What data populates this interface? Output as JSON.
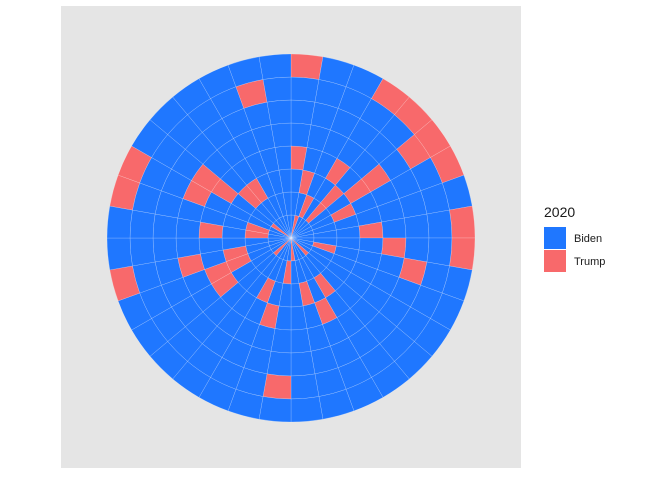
{
  "chart_data": {
    "type": "polar-tile",
    "title": "",
    "xlabel": "",
    "ylabel": "",
    "rings": 8,
    "sectors": 36,
    "fill_order": "sector 0 starts at 12 o'clock, proceeds clockwise; ring 0 is innermost",
    "legend": {
      "title": "2020",
      "position": "right",
      "entries": [
        {
          "label": "Biden",
          "color": "#1f77ff"
        },
        {
          "label": "Trump",
          "color": "#f8696b"
        }
      ]
    },
    "colors": {
      "panel": "#e5e5e5",
      "grid": "#ffffff"
    },
    "trump_cells": [
      [
        0,
        1
      ],
      [
        0,
        13
      ],
      [
        0,
        17
      ],
      [
        0,
        22
      ],
      [
        0,
        30
      ],
      [
        1,
        2
      ],
      [
        1,
        4
      ],
      [
        1,
        10
      ],
      [
        1,
        18
      ],
      [
        1,
        27
      ],
      [
        1,
        28
      ],
      [
        2,
        1
      ],
      [
        2,
        4
      ],
      [
        2,
        6
      ],
      [
        2,
        14
      ],
      [
        2,
        16
      ],
      [
        2,
        20
      ],
      [
        2,
        24
      ],
      [
        2,
        25
      ],
      [
        2,
        31
      ],
      [
        2,
        32
      ],
      [
        3,
        0
      ],
      [
        3,
        3
      ],
      [
        3,
        5
      ],
      [
        3,
        8
      ],
      [
        3,
        15
      ],
      [
        3,
        19
      ],
      [
        3,
        23
      ],
      [
        3,
        24
      ],
      [
        3,
        27
      ],
      [
        3,
        30
      ],
      [
        4,
        5
      ],
      [
        4,
        9
      ],
      [
        4,
        25
      ],
      [
        4,
        29
      ],
      [
        4,
        30
      ],
      [
        5,
        10
      ],
      [
        6,
        5
      ],
      [
        6,
        18
      ],
      [
        6,
        34
      ],
      [
        7,
        0
      ],
      [
        7,
        3
      ],
      [
        7,
        4
      ],
      [
        7,
        5
      ],
      [
        7,
        6
      ],
      [
        7,
        8
      ],
      [
        7,
        9
      ],
      [
        7,
        25
      ],
      [
        7,
        28
      ],
      [
        7,
        29
      ]
    ]
  }
}
